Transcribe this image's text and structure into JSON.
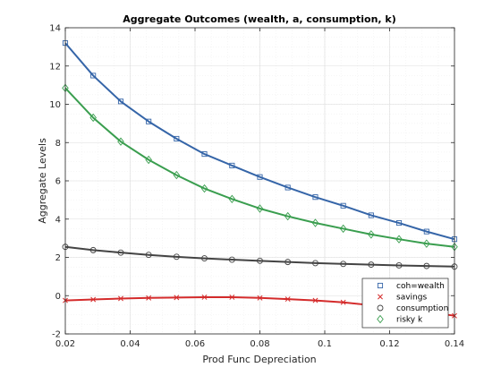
{
  "chart_data": {
    "type": "line",
    "title": "Aggregate Outcomes (wealth, a, consumption, k)",
    "xlabel": "Prod Func Depreciation",
    "ylabel": "Aggregate Levels",
    "xlim": [
      0.02,
      0.14
    ],
    "ylim": [
      -2,
      14
    ],
    "xticks": [
      0.02,
      0.04,
      0.06,
      0.08,
      0.1,
      0.12,
      0.14
    ],
    "xtick_labels": [
      "0.02",
      "0.04",
      "0.06",
      "0.08",
      "0.1",
      "0.12",
      "0.14"
    ],
    "yticks": [
      -2,
      0,
      2,
      4,
      6,
      8,
      10,
      12,
      14
    ],
    "ytick_labels": [
      "-2",
      "0",
      "2",
      "4",
      "6",
      "8",
      "10",
      "12",
      "14"
    ],
    "grid": true,
    "legend_position": "bottom-right",
    "x": [
      0.02,
      0.0286,
      0.0371,
      0.0457,
      0.0543,
      0.0629,
      0.0714,
      0.08,
      0.0886,
      0.0971,
      0.1057,
      0.1143,
      0.1229,
      0.1314,
      0.14
    ],
    "series": [
      {
        "name": "coh=wealth",
        "color": "#3565a8",
        "marker": "square",
        "values": [
          13.2,
          11.5,
          10.15,
          9.1,
          8.2,
          7.4,
          6.8,
          6.2,
          5.65,
          5.15,
          4.7,
          4.2,
          3.8,
          3.35,
          2.95
        ]
      },
      {
        "name": "savings",
        "color": "#d42b2b",
        "marker": "x",
        "values": [
          -0.25,
          -0.2,
          -0.15,
          -0.12,
          -0.1,
          -0.08,
          -0.08,
          -0.12,
          -0.18,
          -0.25,
          -0.35,
          -0.5,
          -0.65,
          -0.85,
          -1.05
        ]
      },
      {
        "name": "consumption",
        "color": "#444444",
        "marker": "circle",
        "values": [
          2.55,
          2.38,
          2.25,
          2.13,
          2.03,
          1.95,
          1.88,
          1.82,
          1.76,
          1.7,
          1.66,
          1.62,
          1.58,
          1.55,
          1.52
        ]
      },
      {
        "name": "risky k",
        "color": "#3a9e4f",
        "marker": "diamond",
        "values": [
          10.85,
          9.3,
          8.05,
          7.1,
          6.3,
          5.6,
          5.05,
          4.55,
          4.15,
          3.8,
          3.5,
          3.2,
          2.95,
          2.72,
          2.55
        ]
      }
    ]
  }
}
